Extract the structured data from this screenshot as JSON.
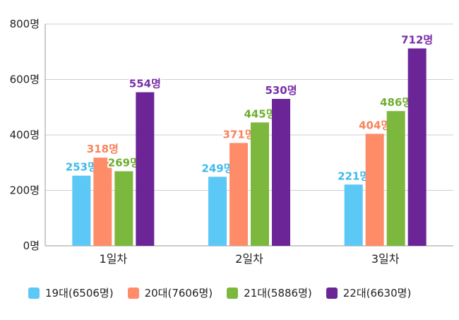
{
  "chart_data": {
    "type": "bar",
    "categories": [
      "1일차",
      "2일차",
      "3일차"
    ],
    "series": [
      {
        "name": "19대(6506명)",
        "color": "#5BC8F5",
        "label_color": "#3DBBEA",
        "values": [
          253,
          249,
          221
        ],
        "labels": [
          "253명",
          "249명",
          "221명"
        ]
      },
      {
        "name": "20대(7606명)",
        "color": "#FF8C69",
        "label_color": "#F7845F",
        "values": [
          318,
          371,
          404
        ],
        "labels": [
          "318명",
          "371명",
          "404명"
        ]
      },
      {
        "name": "21대(5886명)",
        "color": "#7DB83E",
        "label_color": "#6FAE2F",
        "values": [
          269,
          445,
          486
        ],
        "labels": [
          "269명",
          "445명",
          "486명"
        ]
      },
      {
        "name": "22대(6630명)",
        "color": "#6C2596",
        "label_color": "#7A2FA8",
        "values": [
          554,
          530,
          712
        ],
        "labels": [
          "554명",
          "530명",
          "712명"
        ]
      }
    ],
    "y_ticks": [
      0,
      200,
      400,
      600,
      800
    ],
    "y_tick_labels": [
      "0명",
      "200명",
      "400명",
      "600명",
      "800명"
    ],
    "ylim": [
      0,
      800
    ],
    "grid": true,
    "legend_position": "bottom"
  }
}
